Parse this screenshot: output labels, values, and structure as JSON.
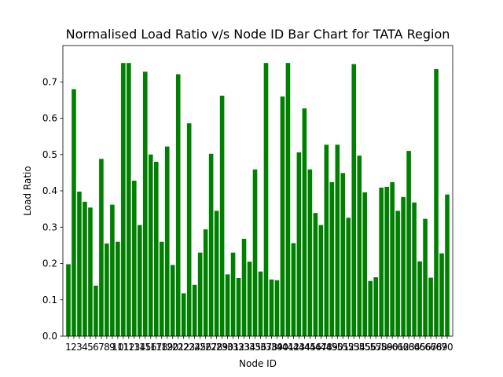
{
  "chart_data": {
    "type": "bar",
    "title": "Normalised Load Ratio v/s Node ID Bar Chart for TATA Region",
    "xlabel": "Node ID",
    "ylabel": "Load Ratio",
    "ylim": [
      0,
      0.8
    ],
    "yticks": [
      "0.0",
      "0.1",
      "0.2",
      "0.3",
      "0.4",
      "0.5",
      "0.6",
      "0.7"
    ],
    "grid": false,
    "bar_color": "#008000",
    "categories": [
      "1",
      "2",
      "3",
      "4",
      "5",
      "6",
      "7",
      "8",
      "9",
      "10",
      "11",
      "12",
      "13",
      "14",
      "15",
      "16",
      "17",
      "18",
      "19",
      "20",
      "21",
      "22",
      "23",
      "24",
      "25",
      "26",
      "27",
      "28",
      "29",
      "30",
      "31",
      "32",
      "33",
      "34",
      "35",
      "36",
      "37",
      "38",
      "39",
      "40",
      "41",
      "42",
      "43",
      "44",
      "45",
      "46",
      "47",
      "48",
      "49",
      "50",
      "51",
      "52",
      "53",
      "54",
      "55",
      "56",
      "57",
      "58",
      "59",
      "60",
      "61",
      "62",
      "63",
      "64",
      "65",
      "66",
      "67",
      "68",
      "69",
      "70"
    ],
    "values": [
      0.198,
      0.68,
      0.398,
      0.37,
      0.354,
      0.139,
      0.488,
      0.255,
      0.362,
      0.26,
      0.752,
      0.752,
      0.428,
      0.306,
      0.728,
      0.5,
      0.48,
      0.26,
      0.522,
      0.196,
      0.721,
      0.118,
      0.586,
      0.141,
      0.23,
      0.294,
      0.502,
      0.345,
      0.662,
      0.17,
      0.23,
      0.16,
      0.268,
      0.205,
      0.459,
      0.178,
      0.752,
      0.156,
      0.154,
      0.66,
      0.752,
      0.256,
      0.506,
      0.627,
      0.459,
      0.339,
      0.306,
      0.527,
      0.424,
      0.527,
      0.449,
      0.326,
      0.749,
      0.497,
      0.396,
      0.152,
      0.162,
      0.409,
      0.411,
      0.424,
      0.345,
      0.383,
      0.51,
      0.368,
      0.206,
      0.323,
      0.161,
      0.735,
      0.228,
      0.39
    ]
  }
}
